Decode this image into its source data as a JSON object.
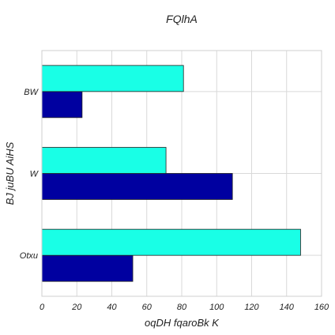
{
  "chart_data": {
    "type": "bar",
    "orientation": "horizontal",
    "title": "FQlhA",
    "xlabel": "oqDH fqaroBk K",
    "ylabel": "BJ juBU  AiHS",
    "categories": [
      "Otxu",
      "W",
      "BW"
    ],
    "xlim": [
      0,
      160
    ],
    "xticks": [
      0,
      20,
      40,
      60,
      80,
      100,
      120,
      140,
      160
    ],
    "grid": true,
    "series": [
      {
        "color": "#0000a0",
        "values": [
          52,
          109,
          23
        ]
      },
      {
        "color": "#19ffe6",
        "values": [
          148,
          71,
          81
        ]
      }
    ]
  }
}
